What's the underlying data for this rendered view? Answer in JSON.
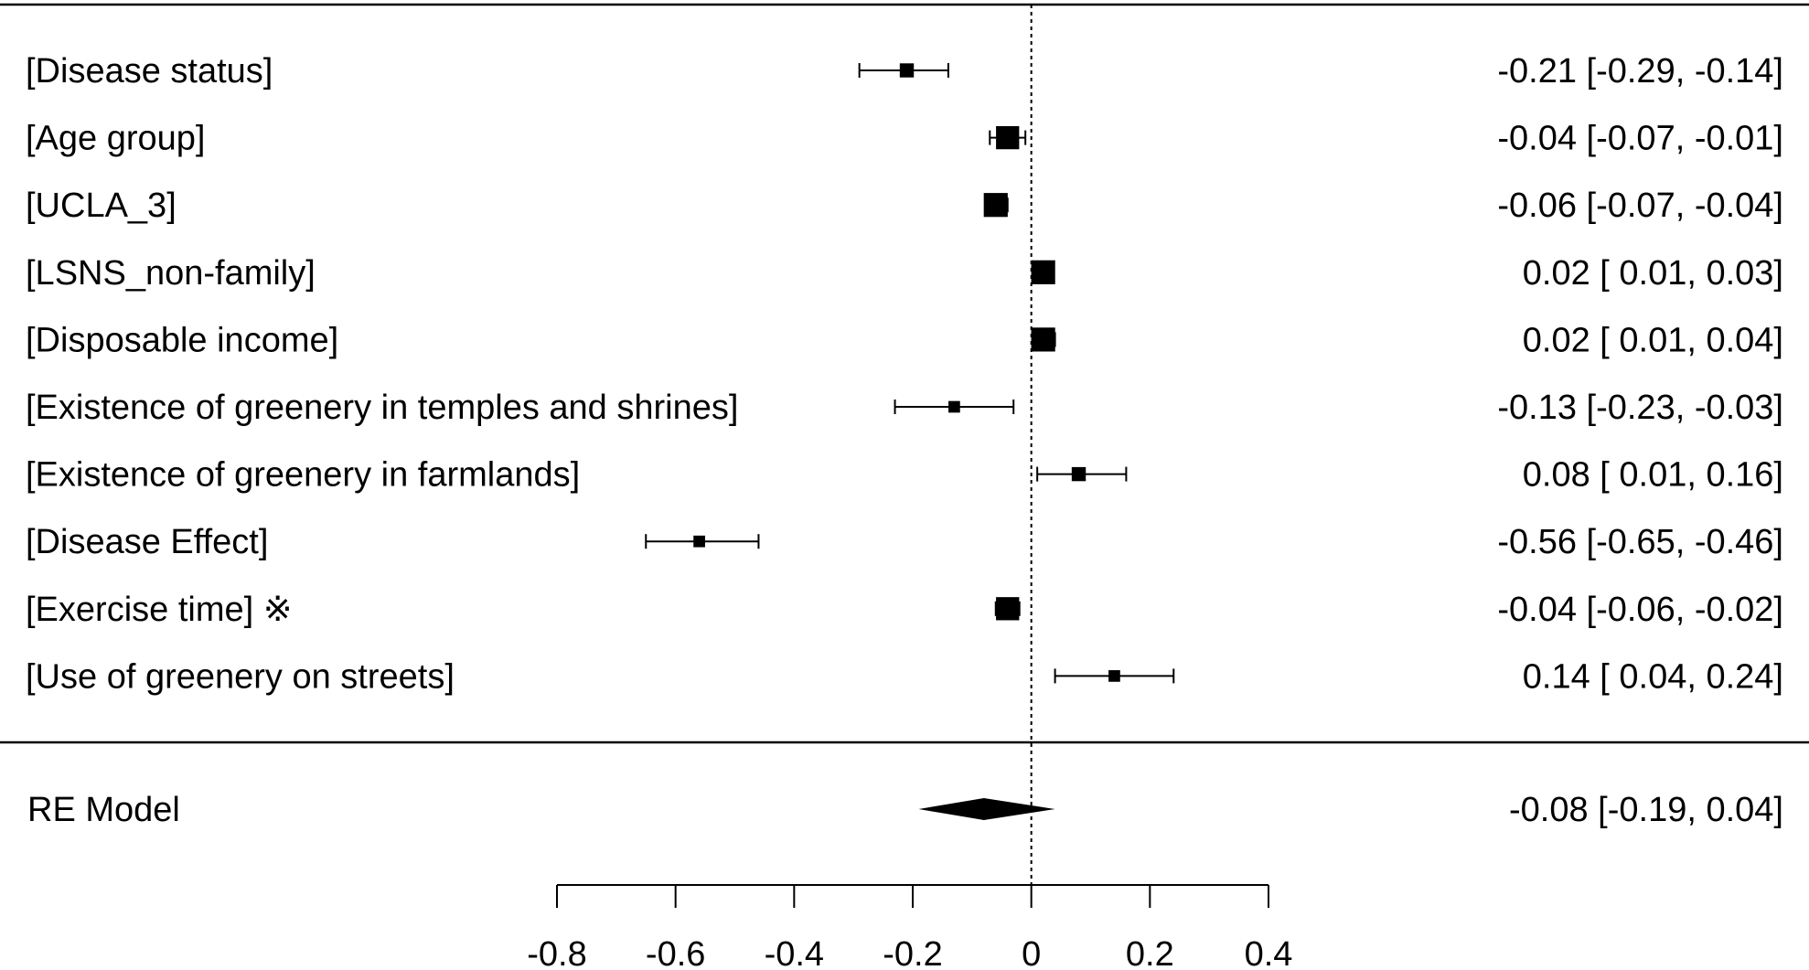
{
  "chart_data": {
    "type": "forest",
    "xlim": [
      -0.8,
      0.4
    ],
    "x_ticks": [
      -0.8,
      -0.6,
      -0.4,
      -0.2,
      0,
      0.2,
      0.4
    ],
    "x_tick_labels": [
      "-0.8",
      "-0.6",
      "-0.4",
      "-0.2",
      "0",
      "0.2",
      "0.4"
    ],
    "reference_line": 0,
    "studies": [
      {
        "label": "[Disease status]",
        "estimate": -0.21,
        "ci_low": -0.29,
        "ci_high": -0.14,
        "weight": 0.3,
        "ci_text": "-0.21 [-0.29, -0.14]"
      },
      {
        "label": "[Age group]",
        "estimate": -0.04,
        "ci_low": -0.07,
        "ci_high": -0.01,
        "weight": 0.85,
        "ci_text": "-0.04 [-0.07, -0.01]"
      },
      {
        "label": "[UCLA_3]",
        "estimate": -0.06,
        "ci_low": -0.07,
        "ci_high": -0.04,
        "weight": 0.9,
        "ci_text": "-0.06 [-0.07, -0.04]"
      },
      {
        "label": "[LSNS_non-family]",
        "estimate": 0.02,
        "ci_low": 0.01,
        "ci_high": 0.03,
        "weight": 0.9,
        "ci_text": "0.02 [ 0.01,  0.03]"
      },
      {
        "label": "[Disposable income]",
        "estimate": 0.02,
        "ci_low": 0.01,
        "ci_high": 0.04,
        "weight": 0.9,
        "ci_text": "0.02 [ 0.01,  0.04]"
      },
      {
        "label": "[Existence of greenery in  temples and shrines]",
        "estimate": -0.13,
        "ci_low": -0.23,
        "ci_high": -0.03,
        "weight": 0.15,
        "ci_text": "-0.13 [-0.23, -0.03]"
      },
      {
        "label": "[Existence of greenery in farmlands]",
        "estimate": 0.08,
        "ci_low": 0.01,
        "ci_high": 0.16,
        "weight": 0.3,
        "ci_text": "0.08 [ 0.01,  0.16]"
      },
      {
        "label": "[Disease Effect]",
        "estimate": -0.56,
        "ci_low": -0.65,
        "ci_high": -0.46,
        "weight": 0.15,
        "ci_text": "-0.56 [-0.65, -0.46]"
      },
      {
        "label": "[Exercise time] ※",
        "estimate": -0.04,
        "ci_low": -0.06,
        "ci_high": -0.02,
        "weight": 0.85,
        "ci_text": "-0.04 [-0.06, -0.02]"
      },
      {
        "label": "[Use of greenery on streets]",
        "estimate": 0.14,
        "ci_low": 0.04,
        "ci_high": 0.24,
        "weight": 0.15,
        "ci_text": "0.14 [ 0.04,  0.24]"
      }
    ],
    "summary": {
      "label": "RE Model",
      "estimate": -0.08,
      "ci_low": -0.19,
      "ci_high": 0.04,
      "ci_text": "-0.08 [-0.19,  0.04]"
    }
  }
}
